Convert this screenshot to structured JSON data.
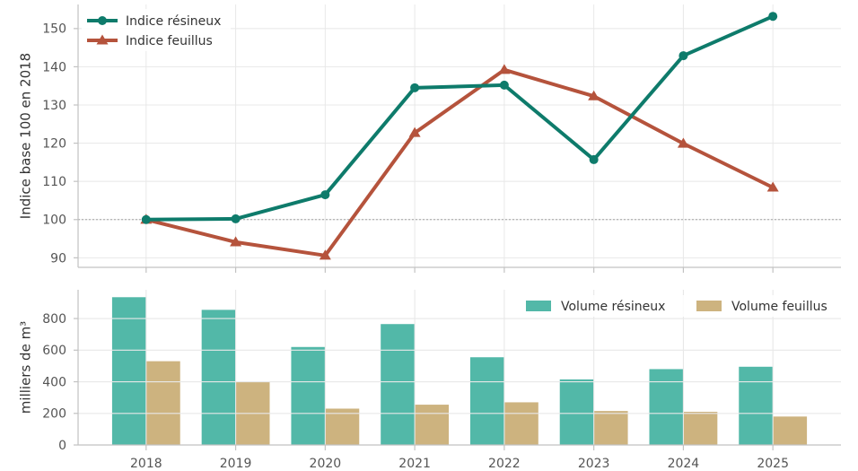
{
  "chart_data": [
    {
      "type": "line",
      "x": [
        2018,
        2019,
        2020,
        2021,
        2022,
        2023,
        2024,
        2025
      ],
      "series": [
        {
          "name": "Indice résineux",
          "values": [
            100,
            100.2,
            106.5,
            134.5,
            135.2,
            115.7,
            142.9,
            153.2
          ],
          "color": "#0e7b6b",
          "marker": "circle"
        },
        {
          "name": "Indice feuillus",
          "values": [
            100,
            94.1,
            90.6,
            122.7,
            139.2,
            132.3,
            119.9,
            108.4
          ],
          "color": "#b5533c",
          "marker": "triangle"
        }
      ],
      "ylabel": "Indice base 100 en 2018",
      "xlim": [
        2017.24,
        2025.76
      ],
      "ylim": [
        87.5,
        156.3
      ],
      "yticks": [
        90,
        100,
        110,
        120,
        130,
        140,
        150
      ],
      "reference_line_y": 100,
      "grid": true,
      "legend": "top-left"
    },
    {
      "type": "bar",
      "categories": [
        "2018",
        "2019",
        "2020",
        "2021",
        "2022",
        "2023",
        "2024",
        "2025"
      ],
      "series": [
        {
          "name": "Volume résineux",
          "values": [
            935,
            855,
            620,
            765,
            555,
            415,
            480,
            495
          ],
          "color": "#52b8a8"
        },
        {
          "name": "Volume feuillus",
          "values": [
            530,
            400,
            230,
            255,
            270,
            215,
            210,
            180
          ],
          "color": "#cdb37f"
        }
      ],
      "ylabel": "milliers de m³",
      "ylim": [
        0,
        982
      ],
      "yticks": [
        0,
        200,
        400,
        600,
        800
      ],
      "grid": true,
      "legend": "top-right"
    }
  ]
}
